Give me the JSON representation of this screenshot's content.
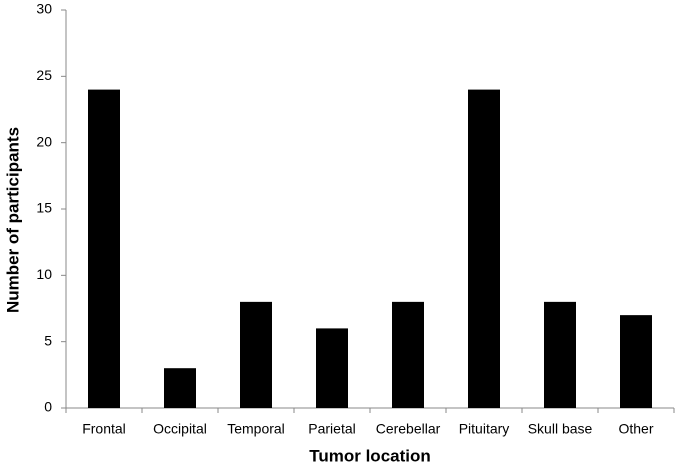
{
  "chart_data": {
    "type": "bar",
    "x_label": "Tumor location",
    "y_label": "Number of participants",
    "categories": [
      "Frontal",
      "Occipital",
      "Temporal",
      "Parietal",
      "Cerebellar",
      "Pituitary",
      "Skull base",
      "Other"
    ],
    "values": [
      24,
      3,
      8,
      6,
      8,
      24,
      8,
      7
    ],
    "color": "#000000",
    "ylim": [
      0,
      30
    ],
    "yticks": [
      0,
      5,
      10,
      15,
      20,
      25,
      30
    ],
    "grid": false
  }
}
